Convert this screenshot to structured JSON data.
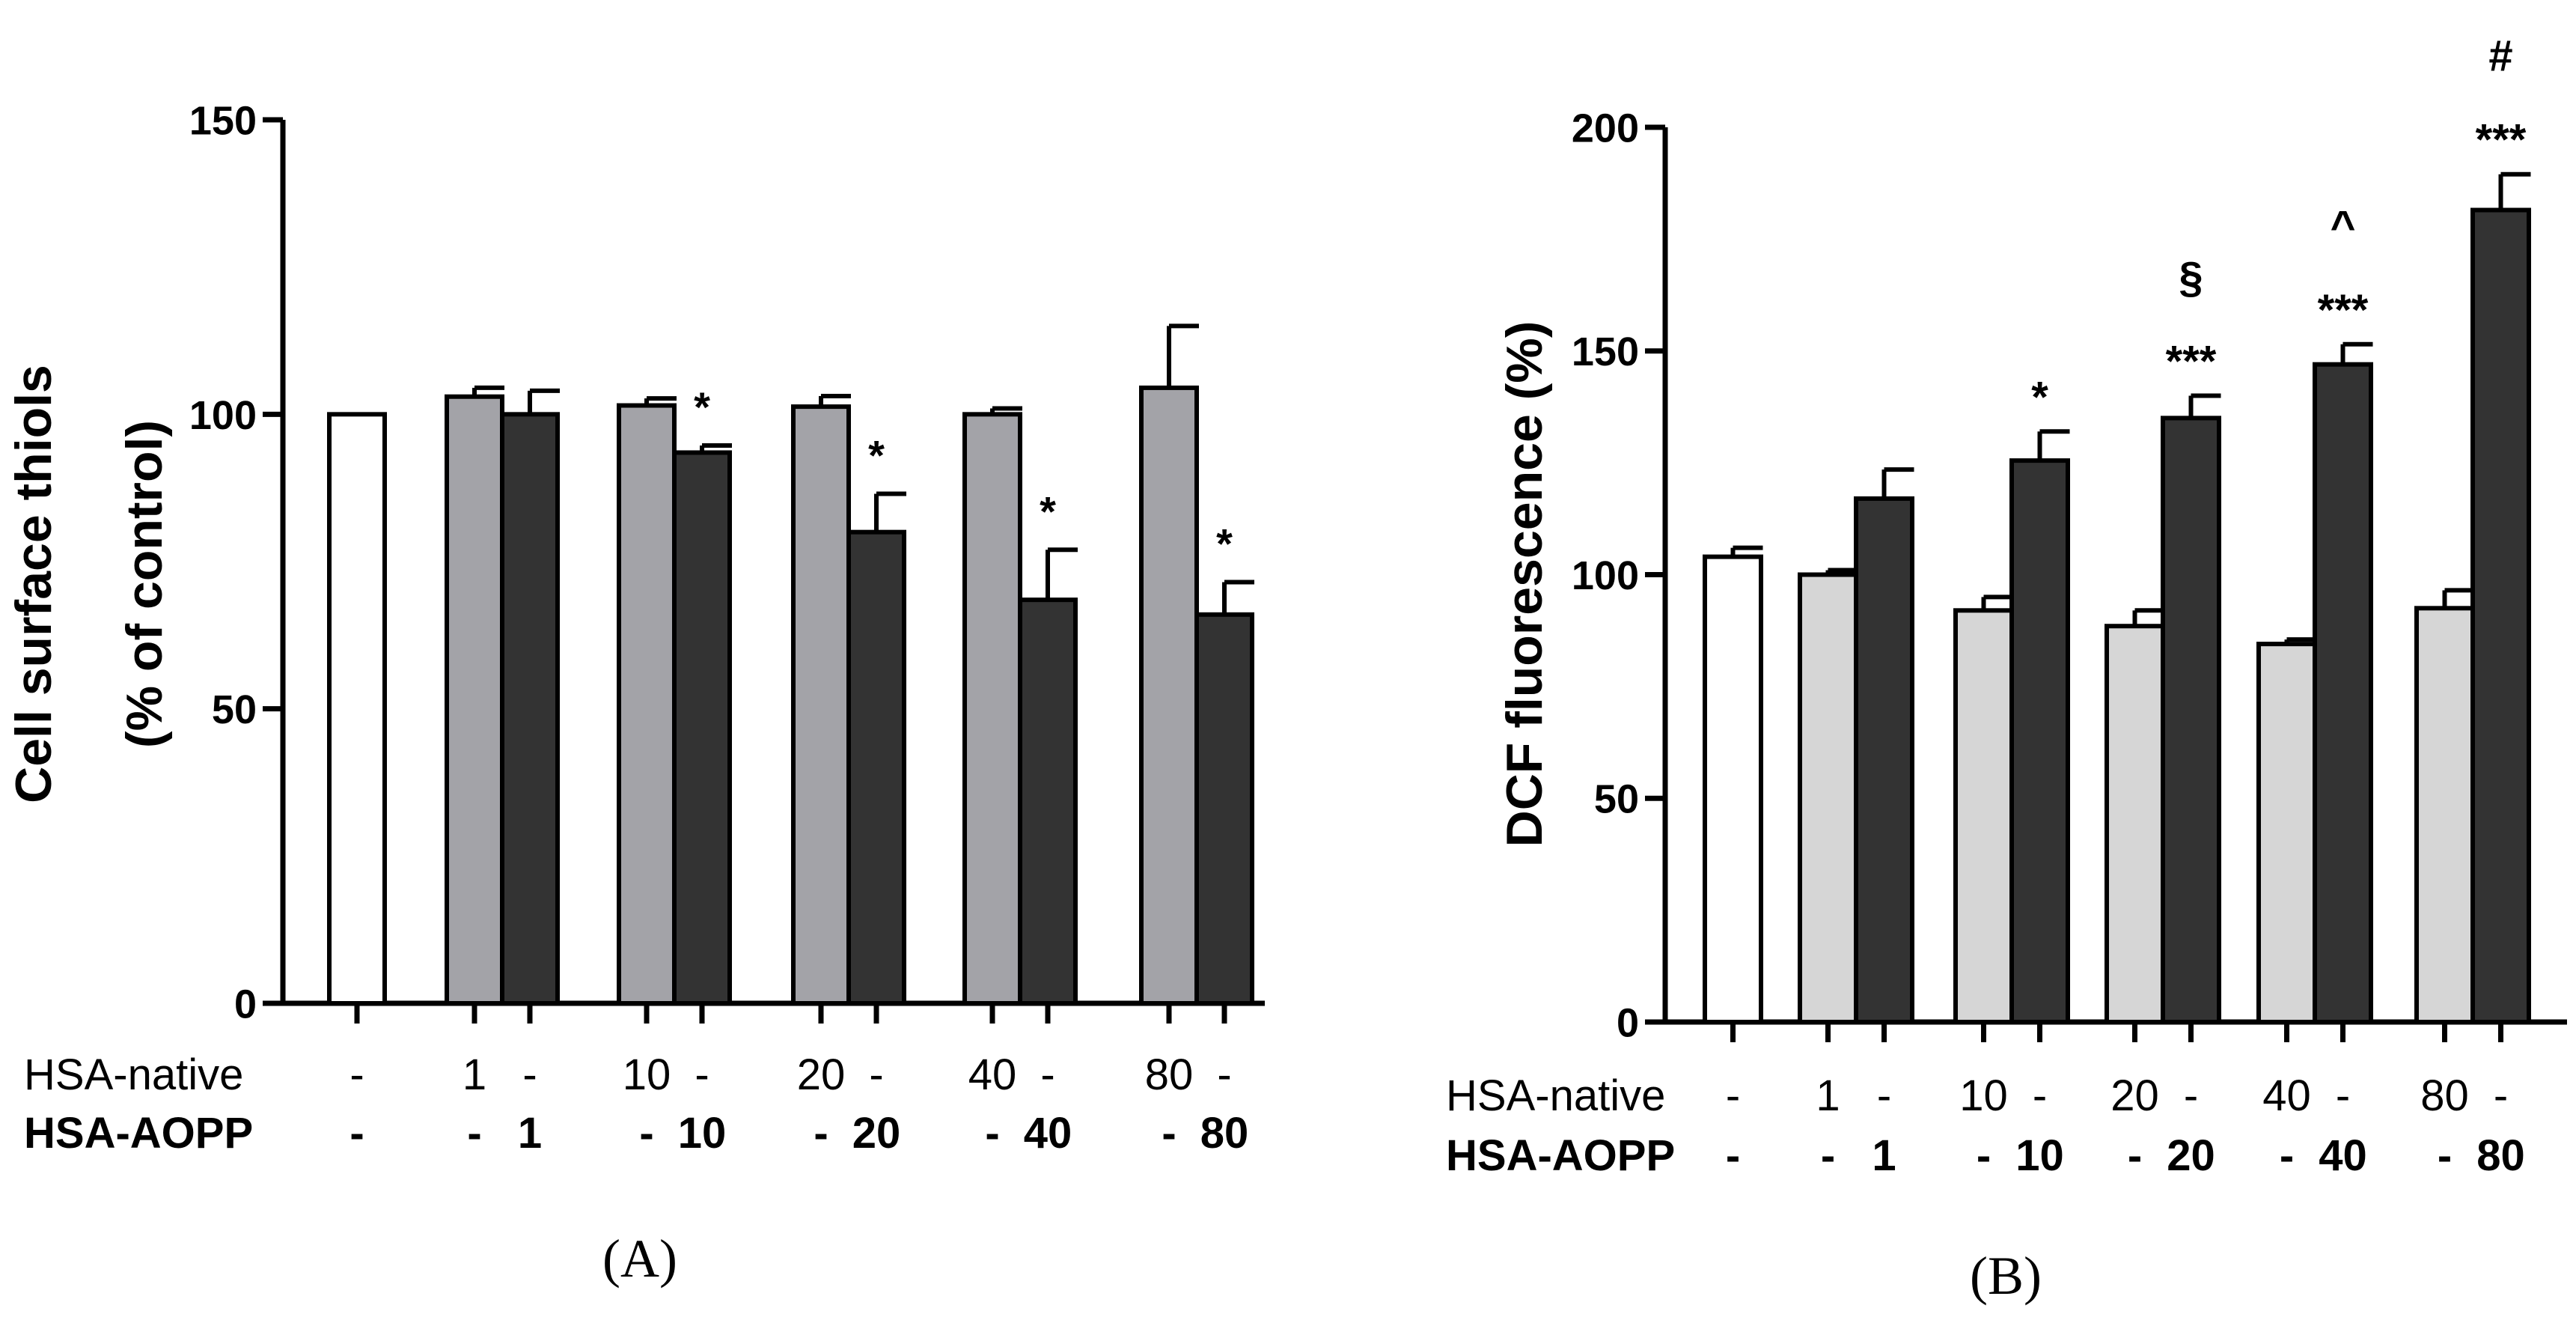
{
  "chart_data": [
    {
      "type": "bar",
      "panel_label": "(A)",
      "ylabel_line1": "Cell surface thiols",
      "ylabel_line2": "(% of control)",
      "ylim": [
        0,
        150
      ],
      "yticks": [
        0,
        50,
        100,
        150
      ],
      "row_labels": {
        "native": "HSA-native",
        "aopp": "HSA-AOPP"
      },
      "colors": {
        "control": "#ffffff",
        "native": "#a3a3a8",
        "aopp": "#333333",
        "outline": "#000000"
      },
      "bars": [
        {
          "series": "control",
          "value": 100,
          "error": 0,
          "native_label": "-",
          "aopp_label": "-",
          "annotations": []
        },
        {
          "series": "native",
          "value": 103,
          "error": 1.5,
          "native_label": "1",
          "aopp_label": "-",
          "annotations": []
        },
        {
          "series": "aopp",
          "value": 100,
          "error": 4,
          "native_label": "-",
          "aopp_label": "1",
          "annotations": []
        },
        {
          "series": "native",
          "value": 101.5,
          "error": 1.2,
          "native_label": "10",
          "aopp_label": "-",
          "annotations": []
        },
        {
          "series": "aopp",
          "value": 93.5,
          "error": 1.2,
          "native_label": "-",
          "aopp_label": "10",
          "annotations": [
            "*"
          ]
        },
        {
          "series": "native",
          "value": 101.3,
          "error": 1.8,
          "native_label": "20",
          "aopp_label": "-",
          "annotations": []
        },
        {
          "series": "aopp",
          "value": 80,
          "error": 6.5,
          "native_label": "-",
          "aopp_label": "20",
          "annotations": [
            "*"
          ]
        },
        {
          "series": "native",
          "value": 100,
          "error": 1,
          "native_label": "40",
          "aopp_label": "-",
          "annotations": []
        },
        {
          "series": "aopp",
          "value": 68.5,
          "error": 8.5,
          "native_label": "-",
          "aopp_label": "40",
          "annotations": [
            "*"
          ]
        },
        {
          "series": "native",
          "value": 104.5,
          "error": 10.5,
          "native_label": "80",
          "aopp_label": "-",
          "annotations": []
        },
        {
          "series": "aopp",
          "value": 66,
          "error": 5.5,
          "native_label": "-",
          "aopp_label": "80",
          "annotations": [
            "*"
          ]
        }
      ]
    },
    {
      "type": "bar",
      "panel_label": "(B)",
      "ylabel_line1": "DCF fluorescence (%)",
      "ylabel_line2": "",
      "ylim": [
        0,
        200
      ],
      "yticks": [
        0,
        50,
        100,
        150,
        200
      ],
      "row_labels": {
        "native": "HSA-native",
        "aopp": "HSA-AOPP"
      },
      "colors": {
        "control": "#ffffff",
        "native": "#d6d6d6",
        "aopp": "#333333",
        "outline": "#000000"
      },
      "bars": [
        {
          "series": "control",
          "value": 104,
          "error": 2,
          "native_label": "-",
          "aopp_label": "-",
          "annotations": []
        },
        {
          "series": "native",
          "value": 100,
          "error": 1,
          "native_label": "1",
          "aopp_label": "-",
          "annotations": []
        },
        {
          "series": "aopp",
          "value": 117,
          "error": 6.5,
          "native_label": "-",
          "aopp_label": "1",
          "annotations": []
        },
        {
          "series": "native",
          "value": 92,
          "error": 3,
          "native_label": "10",
          "aopp_label": "-",
          "annotations": []
        },
        {
          "series": "aopp",
          "value": 125.5,
          "error": 6.5,
          "native_label": "-",
          "aopp_label": "10",
          "annotations": [
            "*"
          ]
        },
        {
          "series": "native",
          "value": 88.5,
          "error": 3.5,
          "native_label": "20",
          "aopp_label": "-",
          "annotations": []
        },
        {
          "series": "aopp",
          "value": 135,
          "error": 5,
          "native_label": "-",
          "aopp_label": "20",
          "annotations": [
            "***",
            "§"
          ]
        },
        {
          "series": "native",
          "value": 84.5,
          "error": 1,
          "native_label": "40",
          "aopp_label": "-",
          "annotations": []
        },
        {
          "series": "aopp",
          "value": 147,
          "error": 4.5,
          "native_label": "-",
          "aopp_label": "40",
          "annotations": [
            "***",
            "^"
          ]
        },
        {
          "series": "native",
          "value": 92.5,
          "error": 4,
          "native_label": "80",
          "aopp_label": "-",
          "annotations": []
        },
        {
          "series": "aopp",
          "value": 181.5,
          "error": 8,
          "native_label": "-",
          "aopp_label": "80",
          "annotations": [
            "***",
            "#"
          ]
        }
      ]
    }
  ]
}
